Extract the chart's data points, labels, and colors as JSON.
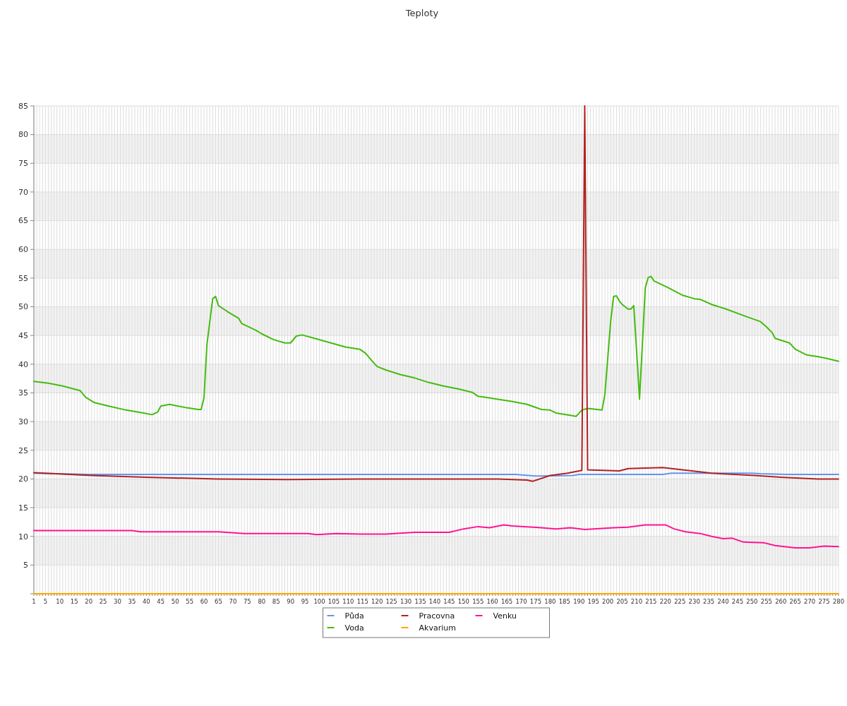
{
  "chart_data": {
    "type": "line",
    "title": "Teploty",
    "xlim": [
      1,
      280
    ],
    "xticks": [
      1,
      {
        "value": 2,
        "label": null
      },
      {
        "value": 3,
        "label": null
      },
      {
        "value": 4,
        "label": null
      },
      5,
      {
        "value": 6,
        "label": null
      },
      {
        "value": 7,
        "label": null
      },
      {
        "value": 8,
        "label": null
      },
      {
        "value": 9,
        "label": null
      },
      10,
      {
        "value": 11,
        "label": null
      },
      {
        "value": 12,
        "label": null
      },
      {
        "value": 13,
        "label": null
      },
      {
        "value": 14,
        "label": null
      },
      15,
      {
        "value": 16,
        "label": null
      },
      {
        "value": 17,
        "label": null
      },
      {
        "value": 18,
        "label": null
      },
      {
        "value": 19,
        "label": null
      },
      20,
      {
        "value": 21,
        "label": null
      },
      {
        "value": 22,
        "label": null
      },
      {
        "value": 23,
        "label": null
      },
      {
        "value": 24,
        "label": null
      },
      25,
      {
        "value": 26,
        "label": null
      },
      {
        "value": 27,
        "label": null
      },
      {
        "value": 28,
        "label": null
      },
      {
        "value": 29,
        "label": null
      },
      30,
      {
        "value": 31,
        "label": null
      },
      {
        "value": 32,
        "label": null
      },
      {
        "value": 33,
        "label": null
      },
      {
        "value": 34,
        "label": null
      },
      35,
      {
        "value": 36,
        "label": null
      },
      {
        "value": 37,
        "label": null
      },
      {
        "value": 38,
        "label": null
      },
      {
        "value": 39,
        "label": null
      },
      40,
      {
        "value": 41,
        "label": null
      },
      {
        "value": 42,
        "label": null
      },
      {
        "value": 43,
        "label": null
      },
      {
        "value": 44,
        "label": null
      },
      45,
      {
        "value": 46,
        "label": null
      },
      {
        "value": 47,
        "label": null
      },
      {
        "value": 48,
        "label": null
      },
      {
        "value": 49,
        "label": null
      },
      50,
      {
        "value": 51,
        "label": null
      },
      {
        "value": 52,
        "label": null
      },
      {
        "value": 53,
        "label": null
      },
      {
        "value": 54,
        "label": null
      },
      55,
      {
        "value": 56,
        "label": null
      },
      {
        "value": 57,
        "label": null
      },
      {
        "value": 58,
        "label": null
      },
      {
        "value": 59,
        "label": null
      },
      60,
      {
        "value": 61,
        "label": null
      },
      {
        "value": 62,
        "label": null
      },
      {
        "value": 63,
        "label": null
      },
      {
        "value": 64,
        "label": null
      },
      65,
      {
        "value": 66,
        "label": null
      },
      {
        "value": 67,
        "label": null
      },
      {
        "value": 68,
        "label": null
      },
      {
        "value": 69,
        "label": null
      },
      70,
      {
        "value": 71,
        "label": null
      },
      {
        "value": 72,
        "label": null
      },
      {
        "value": 73,
        "label": null
      },
      {
        "value": 74,
        "label": null
      },
      75,
      {
        "value": 76,
        "label": null
      },
      {
        "value": 77,
        "label": null
      },
      {
        "value": 78,
        "label": null
      },
      {
        "value": 79,
        "label": null
      },
      80,
      {
        "value": 81,
        "label": null
      },
      {
        "value": 82,
        "label": null
      },
      {
        "value": 83,
        "label": null
      },
      {
        "value": 84,
        "label": null
      },
      85,
      {
        "value": 86,
        "label": null
      },
      {
        "value": 87,
        "label": null
      },
      {
        "value": 88,
        "label": null
      },
      {
        "value": 89,
        "label": null
      },
      90,
      {
        "value": 91,
        "label": null
      },
      {
        "value": 92,
        "label": null
      },
      {
        "value": 93,
        "label": null
      },
      {
        "value": 94,
        "label": null
      },
      95,
      {
        "value": 96,
        "label": null
      },
      {
        "value": 97,
        "label": null
      },
      {
        "value": 98,
        "label": null
      },
      {
        "value": 99,
        "label": null
      },
      100,
      {
        "value": 101,
        "label": null
      },
      {
        "value": 102,
        "label": null
      },
      {
        "value": 103,
        "label": null
      },
      {
        "value": 104,
        "label": null
      },
      105,
      {
        "value": 106,
        "label": null
      },
      {
        "value": 107,
        "label": null
      },
      {
        "value": 108,
        "label": null
      },
      {
        "value": 109,
        "label": null
      },
      110,
      {
        "value": 111,
        "label": null
      },
      {
        "value": 112,
        "label": null
      },
      {
        "value": 113,
        "label": null
      },
      {
        "value": 114,
        "label": null
      },
      115,
      {
        "value": 116,
        "label": null
      },
      {
        "value": 117,
        "label": null
      },
      {
        "value": 118,
        "label": null
      },
      {
        "value": 119,
        "label": null
      },
      120,
      {
        "value": 121,
        "label": null
      },
      {
        "value": 122,
        "label": null
      },
      {
        "value": 123,
        "label": null
      },
      {
        "value": 124,
        "label": null
      },
      125,
      {
        "value": 126,
        "label": null
      },
      {
        "value": 127,
        "label": null
      },
      {
        "value": 128,
        "label": null
      },
      {
        "value": 129,
        "label": null
      },
      130,
      {
        "value": 131,
        "label": null
      },
      {
        "value": 132,
        "label": null
      },
      {
        "value": 133,
        "label": null
      },
      {
        "value": 134,
        "label": null
      },
      135,
      {
        "value": 136,
        "label": null
      },
      {
        "value": 137,
        "label": null
      },
      {
        "value": 138,
        "label": null
      },
      {
        "value": 139,
        "label": null
      },
      140,
      {
        "value": 141,
        "label": null
      },
      {
        "value": 142,
        "label": null
      },
      {
        "value": 143,
        "label": null
      },
      {
        "value": 144,
        "label": null
      },
      145,
      {
        "value": 146,
        "label": null
      },
      {
        "value": 147,
        "label": null
      },
      {
        "value": 148,
        "label": null
      },
      {
        "value": 149,
        "label": null
      },
      150,
      {
        "value": 151,
        "label": null
      },
      {
        "value": 152,
        "label": null
      },
      {
        "value": 153,
        "label": null
      },
      {
        "value": 154,
        "label": null
      },
      155,
      {
        "value": 156,
        "label": null
      },
      {
        "value": 157,
        "label": null
      },
      {
        "value": 158,
        "label": null
      },
      {
        "value": 159,
        "label": null
      },
      160,
      {
        "value": 161,
        "label": null
      },
      {
        "value": 162,
        "label": null
      },
      {
        "value": 163,
        "label": null
      },
      {
        "value": 164,
        "label": null
      },
      165,
      {
        "value": 166,
        "label": null
      },
      {
        "value": 167,
        "label": null
      },
      {
        "value": 168,
        "label": null
      },
      {
        "value": 169,
        "label": null
      },
      170,
      {
        "value": 171,
        "label": null
      },
      {
        "value": 172,
        "label": null
      },
      {
        "value": 173,
        "label": null
      },
      {
        "value": 174,
        "label": null
      },
      175,
      {
        "value": 176,
        "label": null
      },
      {
        "value": 177,
        "label": null
      },
      {
        "value": 178,
        "label": null
      },
      {
        "value": 179,
        "label": null
      },
      180,
      {
        "value": 181,
        "label": null
      },
      {
        "value": 182,
        "label": null
      },
      {
        "value": 183,
        "label": null
      },
      {
        "value": 184,
        "label": null
      },
      185,
      {
        "value": 186,
        "label": null
      },
      {
        "value": 187,
        "label": null
      },
      {
        "value": 188,
        "label": null
      },
      {
        "value": 189,
        "label": null
      },
      190,
      {
        "value": 191,
        "label": null
      },
      {
        "value": 192,
        "label": null
      },
      {
        "value": 193,
        "label": null
      },
      {
        "value": 194,
        "label": null
      },
      195,
      {
        "value": 196,
        "label": null
      },
      {
        "value": 197,
        "label": null
      },
      {
        "value": 198,
        "label": null
      },
      {
        "value": 199,
        "label": null
      },
      200,
      {
        "value": 201,
        "label": null
      },
      {
        "value": 202,
        "label": null
      },
      {
        "value": 203,
        "label": null
      },
      {
        "value": 204,
        "label": null
      },
      205,
      {
        "value": 206,
        "label": null
      },
      {
        "value": 207,
        "label": null
      },
      {
        "value": 208,
        "label": null
      },
      {
        "value": 209,
        "label": null
      },
      210,
      {
        "value": 211,
        "label": null
      },
      {
        "value": 212,
        "label": null
      },
      {
        "value": 213,
        "label": null
      },
      {
        "value": 214,
        "label": null
      },
      215,
      {
        "value": 216,
        "label": null
      },
      {
        "value": 217,
        "label": null
      },
      {
        "value": 218,
        "label": null
      },
      {
        "value": 219,
        "label": null
      },
      220,
      {
        "value": 221,
        "label": null
      },
      {
        "value": 222,
        "label": null
      },
      {
        "value": 223,
        "label": null
      },
      {
        "value": 224,
        "label": null
      },
      225,
      {
        "value": 226,
        "label": null
      },
      {
        "value": 227,
        "label": null
      },
      {
        "value": 228,
        "label": null
      },
      {
        "value": 229,
        "label": null
      },
      230,
      {
        "value": 231,
        "label": null
      },
      {
        "value": 232,
        "label": null
      },
      {
        "value": 233,
        "label": null
      },
      {
        "value": 234,
        "label": null
      },
      235,
      {
        "value": 236,
        "label": null
      },
      {
        "value": 237,
        "label": null
      },
      {
        "value": 238,
        "label": null
      },
      {
        "value": 239,
        "label": null
      },
      240,
      {
        "value": 241,
        "label": null
      },
      {
        "value": 242,
        "label": null
      },
      {
        "value": 243,
        "label": null
      },
      {
        "value": 244,
        "label": null
      },
      245,
      {
        "value": 246,
        "label": null
      },
      {
        "value": 247,
        "label": null
      },
      {
        "value": 248,
        "label": null
      },
      {
        "value": 249,
        "label": null
      },
      250,
      {
        "value": 251,
        "label": null
      },
      {
        "value": 252,
        "label": null
      },
      {
        "value": 253,
        "label": null
      },
      {
        "value": 254,
        "label": null
      },
      255,
      {
        "value": 256,
        "label": null
      },
      {
        "value": 257,
        "label": null
      },
      {
        "value": 258,
        "label": null
      },
      {
        "value": 259,
        "label": null
      },
      260,
      {
        "value": 261,
        "label": null
      },
      {
        "value": 262,
        "label": null
      },
      {
        "value": 263,
        "label": null
      },
      {
        "value": 264,
        "label": null
      },
      265,
      {
        "value": 266,
        "label": null
      },
      {
        "value": 267,
        "label": null
      },
      {
        "value": 268,
        "label": null
      },
      {
        "value": 269,
        "label": null
      },
      270,
      {
        "value": 271,
        "label": null
      },
      {
        "value": 272,
        "label": null
      },
      {
        "value": 273,
        "label": null
      },
      {
        "value": 274,
        "label": null
      },
      275,
      {
        "value": 276,
        "label": null
      },
      {
        "value": 277,
        "label": null
      },
      {
        "value": 278,
        "label": null
      },
      {
        "value": 279,
        "label": null
      },
      280
    ],
    "ylim": [
      0,
      85
    ],
    "yticks": [
      {
        "value": 0,
        "label": null
      },
      5,
      10,
      15,
      20,
      25,
      30,
      35,
      40,
      45,
      50,
      55,
      60,
      65,
      70,
      75,
      80,
      85
    ],
    "grid": true,
    "legend": "bottom",
    "series": [
      {
        "name": "Půda",
        "color": "#6495ed",
        "x": [
          1,
          20,
          168,
          175,
          188,
          190,
          219,
          222,
          250,
          253,
          262,
          280
        ],
        "values": [
          21.0,
          20.8,
          20.8,
          20.5,
          20.6,
          20.8,
          20.8,
          21.0,
          21.0,
          20.9,
          20.8,
          20.8
        ]
      },
      {
        "name": "Voda",
        "color": "#44bb11",
        "x": [
          1,
          6,
          11,
          17,
          19,
          22,
          27,
          33,
          39,
          42,
          44,
          45,
          48,
          54,
          58,
          59,
          60,
          61,
          63,
          64,
          65,
          68,
          72,
          73,
          78,
          80,
          84,
          88,
          90,
          92,
          94,
          99,
          104,
          109,
          114,
          116,
          118,
          120,
          123,
          128,
          133,
          138,
          143,
          148,
          153,
          155,
          158,
          163,
          167,
          172,
          177,
          180,
          182,
          187,
          189,
          191,
          193,
          198,
          199,
          201,
          202,
          203,
          204,
          205,
          207,
          208,
          209,
          210,
          211,
          213,
          214,
          215,
          216,
          221,
          226,
          230,
          232,
          236,
          241,
          248,
          253,
          255,
          257,
          258,
          263,
          265,
          269,
          273,
          276,
          280
        ],
        "values": [
          37.0,
          36.7,
          36.2,
          35.4,
          34.2,
          33.3,
          32.7,
          32.0,
          31.5,
          31.2,
          31.7,
          32.7,
          33.0,
          32.4,
          32.1,
          32.1,
          34.2,
          43.4,
          51.4,
          51.8,
          50.2,
          49.2,
          48.0,
          47.1,
          45.9,
          45.3,
          44.3,
          43.7,
          43.7,
          44.9,
          45.1,
          44.4,
          43.7,
          43.0,
          42.6,
          41.9,
          40.7,
          39.6,
          39.0,
          38.2,
          37.6,
          36.8,
          36.2,
          35.7,
          35.1,
          34.4,
          34.2,
          33.8,
          33.5,
          33.0,
          32.1,
          32.0,
          31.5,
          31.1,
          30.9,
          32.0,
          32.3,
          32.0,
          34.8,
          47.5,
          51.8,
          51.9,
          51.0,
          50.4,
          49.6,
          49.6,
          50.2,
          42.2,
          33.9,
          53.3,
          55.1,
          55.3,
          54.5,
          53.3,
          52.0,
          51.4,
          51.3,
          50.4,
          49.6,
          48.3,
          47.4,
          46.5,
          45.5,
          44.5,
          43.7,
          42.6,
          41.6,
          41.3,
          41.0,
          40.5
        ]
      },
      {
        "name": "Pracovna",
        "color": "#b22222",
        "x": [
          1,
          21,
          40,
          65,
          89,
          114,
          138,
          162,
          172,
          174,
          180,
          186,
          191,
          192,
          193,
          204,
          207,
          219,
          226,
          236,
          251,
          260,
          273,
          280
        ],
        "values": [
          21.1,
          20.6,
          20.3,
          20.0,
          19.9,
          20.0,
          20.0,
          20.0,
          19.8,
          19.6,
          20.6,
          21.0,
          21.5,
          85,
          21.6,
          21.4,
          21.8,
          22.0,
          21.6,
          21.0,
          20.6,
          20.3,
          20.0,
          20.0
        ]
      },
      {
        "name": "Akvarium",
        "color": "#ffa500",
        "x": [
          1,
          280
        ],
        "values": [
          0,
          0
        ]
      },
      {
        "name": "Venku",
        "color": "#ff1493",
        "x": [
          1,
          35,
          38,
          65,
          74,
          96,
          99,
          106,
          114,
          123,
          133,
          145,
          150,
          155,
          159,
          164,
          167,
          177,
          182,
          187,
          192,
          202,
          207,
          213,
          220,
          223,
          227,
          232,
          236,
          240,
          243,
          247,
          254,
          258,
          265,
          270,
          275,
          280
        ],
        "values": [
          11.0,
          11.0,
          10.8,
          10.8,
          10.5,
          10.5,
          10.3,
          10.5,
          10.4,
          10.4,
          10.7,
          10.7,
          11.3,
          11.7,
          11.5,
          12.0,
          11.8,
          11.5,
          11.3,
          11.5,
          11.2,
          11.5,
          11.6,
          12.0,
          12.0,
          11.3,
          10.8,
          10.5,
          10.0,
          9.6,
          9.7,
          9.0,
          8.9,
          8.4,
          8.0,
          8.0,
          8.3,
          8.2
        ]
      }
    ]
  }
}
